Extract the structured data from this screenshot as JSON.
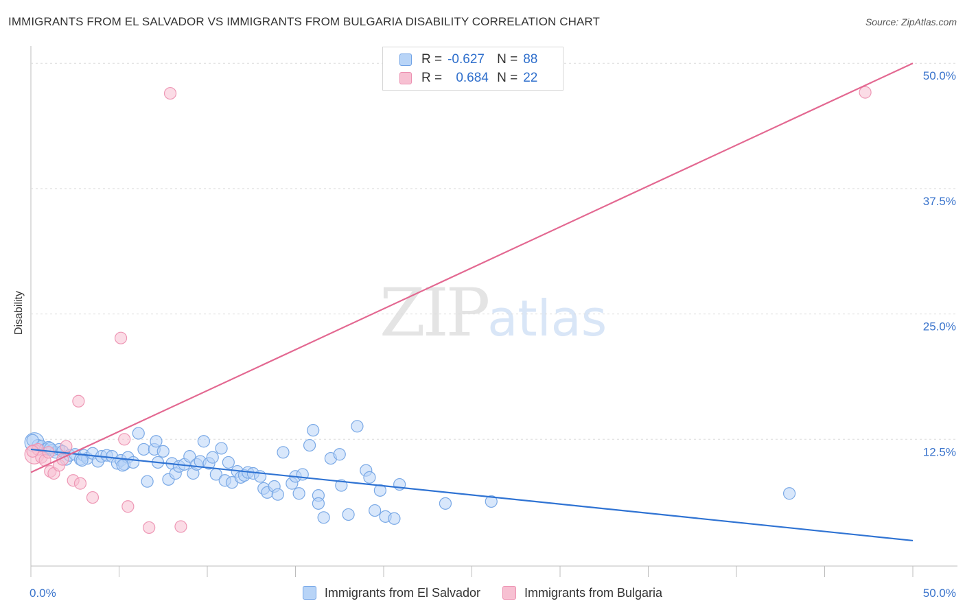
{
  "title": "IMMIGRANTS FROM EL SALVADOR VS IMMIGRANTS FROM BULGARIA DISABILITY CORRELATION CHART",
  "source": "Source: ZipAtlas.com",
  "watermark": {
    "zip": "ZIP",
    "atlas": "atlas"
  },
  "stats": [
    {
      "r_label": "R =",
      "r": "-0.627",
      "n_label": "N =",
      "n": "88"
    },
    {
      "r_label": "R =",
      "r": "0.684",
      "n_label": "N =",
      "n": "22"
    }
  ],
  "legend": [
    "Immigrants from El Salvador",
    "Immigrants from Bulgaria"
  ],
  "colors": {
    "blue_fill": "#b8d4f7",
    "blue_line": "#2f73d3",
    "pink_fill": "#f7c0d2",
    "pink_line": "#e36891",
    "tick_label": "#3a74cc"
  },
  "chart_data": {
    "type": "scatter",
    "title": "IMMIGRANTS FROM EL SALVADOR VS IMMIGRANTS FROM BULGARIA DISABILITY CORRELATION CHART",
    "xlabel": "",
    "ylabel": "Disability",
    "xlim": [
      0,
      50
    ],
    "ylim": [
      0,
      52
    ],
    "x_tick_labels": [
      "0.0%",
      "50.0%"
    ],
    "y_ticks": [
      12.5,
      25.0,
      37.5,
      50.0
    ],
    "y_tick_labels": [
      "12.5%",
      "25.0%",
      "37.5%",
      "50.0%"
    ],
    "legend_position": "bottom-center",
    "series": [
      {
        "name": "Immigrants from El Salvador",
        "trend": {
          "x": [
            0,
            50
          ],
          "y": [
            11.5,
            2.4
          ]
        },
        "points": [
          [
            0.2,
            12.2
          ],
          [
            0.4,
            11.9
          ],
          [
            0.6,
            11.8
          ],
          [
            0.8,
            11.5
          ],
          [
            1.0,
            11.7
          ],
          [
            1.2,
            11.4
          ],
          [
            1.4,
            11.2
          ],
          [
            1.6,
            11.5
          ],
          [
            1.8,
            11.3
          ],
          [
            2.0,
            10.5
          ],
          [
            2.2,
            10.9
          ],
          [
            2.5,
            11.0
          ],
          [
            2.8,
            10.5
          ],
          [
            3.0,
            10.9
          ],
          [
            3.2,
            10.6
          ],
          [
            3.5,
            11.1
          ],
          [
            3.8,
            10.3
          ],
          [
            4.0,
            10.8
          ],
          [
            4.3,
            10.9
          ],
          [
            4.6,
            10.8
          ],
          [
            4.9,
            10.1
          ],
          [
            5.1,
            10.4
          ],
          [
            5.3,
            10.0
          ],
          [
            5.5,
            10.7
          ],
          [
            5.8,
            10.2
          ],
          [
            6.1,
            13.1
          ],
          [
            6.4,
            11.5
          ],
          [
            6.6,
            8.3
          ],
          [
            7.0,
            11.5
          ],
          [
            7.1,
            12.3
          ],
          [
            7.2,
            10.2
          ],
          [
            7.5,
            11.3
          ],
          [
            7.8,
            8.5
          ],
          [
            8.0,
            10.1
          ],
          [
            8.2,
            9.1
          ],
          [
            8.4,
            9.8
          ],
          [
            8.7,
            10.0
          ],
          [
            9.0,
            10.8
          ],
          [
            9.2,
            9.1
          ],
          [
            9.4,
            10.0
          ],
          [
            9.6,
            10.3
          ],
          [
            9.8,
            12.3
          ],
          [
            10.1,
            10.1
          ],
          [
            10.3,
            10.7
          ],
          [
            10.5,
            9.0
          ],
          [
            10.8,
            11.6
          ],
          [
            11.0,
            8.4
          ],
          [
            11.2,
            10.2
          ],
          [
            11.4,
            8.2
          ],
          [
            11.7,
            9.3
          ],
          [
            11.9,
            8.7
          ],
          [
            12.1,
            8.9
          ],
          [
            12.3,
            9.2
          ],
          [
            12.6,
            9.1
          ],
          [
            13.0,
            8.8
          ],
          [
            13.2,
            7.6
          ],
          [
            13.4,
            7.2
          ],
          [
            13.8,
            7.8
          ],
          [
            14.0,
            7.0
          ],
          [
            14.3,
            11.2
          ],
          [
            14.8,
            8.1
          ],
          [
            15.0,
            8.8
          ],
          [
            15.2,
            7.1
          ],
          [
            15.4,
            9.0
          ],
          [
            15.8,
            11.9
          ],
          [
            16.0,
            13.4
          ],
          [
            16.3,
            6.9
          ],
          [
            16.3,
            6.1
          ],
          [
            16.6,
            4.7
          ],
          [
            17.0,
            10.6
          ],
          [
            17.5,
            11.0
          ],
          [
            17.6,
            7.9
          ],
          [
            18.0,
            5.0
          ],
          [
            18.5,
            13.8
          ],
          [
            19.0,
            9.4
          ],
          [
            19.2,
            8.7
          ],
          [
            19.5,
            5.4
          ],
          [
            19.8,
            7.4
          ],
          [
            20.1,
            4.8
          ],
          [
            20.6,
            4.6
          ],
          [
            20.9,
            8.0
          ],
          [
            23.5,
            6.1
          ],
          [
            26.1,
            6.3
          ],
          [
            43.0,
            7.1
          ],
          [
            0.1,
            12.4
          ],
          [
            1.1,
            11.6
          ],
          [
            2.9,
            10.4
          ],
          [
            5.2,
            9.9
          ]
        ]
      },
      {
        "name": "Immigrants from Bulgaria",
        "trend": {
          "x": [
            0,
            50
          ],
          "y": [
            9.2,
            50.0
          ]
        },
        "points": [
          [
            0.2,
            11.0
          ],
          [
            0.4,
            11.5
          ],
          [
            0.6,
            10.7
          ],
          [
            0.8,
            10.4
          ],
          [
            1.0,
            11.2
          ],
          [
            1.1,
            9.3
          ],
          [
            1.3,
            9.1
          ],
          [
            1.6,
            9.9
          ],
          [
            1.8,
            10.5
          ],
          [
            2.0,
            11.8
          ],
          [
            2.4,
            8.4
          ],
          [
            2.8,
            8.1
          ],
          [
            3.5,
            6.7
          ],
          [
            2.7,
            16.3
          ],
          [
            5.1,
            22.6
          ],
          [
            5.3,
            12.5
          ],
          [
            5.5,
            5.8
          ],
          [
            6.7,
            3.7
          ],
          [
            7.9,
            47.0
          ],
          [
            8.5,
            3.8
          ],
          [
            47.3,
            47.1
          ],
          [
            0.1,
            11.3
          ]
        ]
      }
    ]
  }
}
